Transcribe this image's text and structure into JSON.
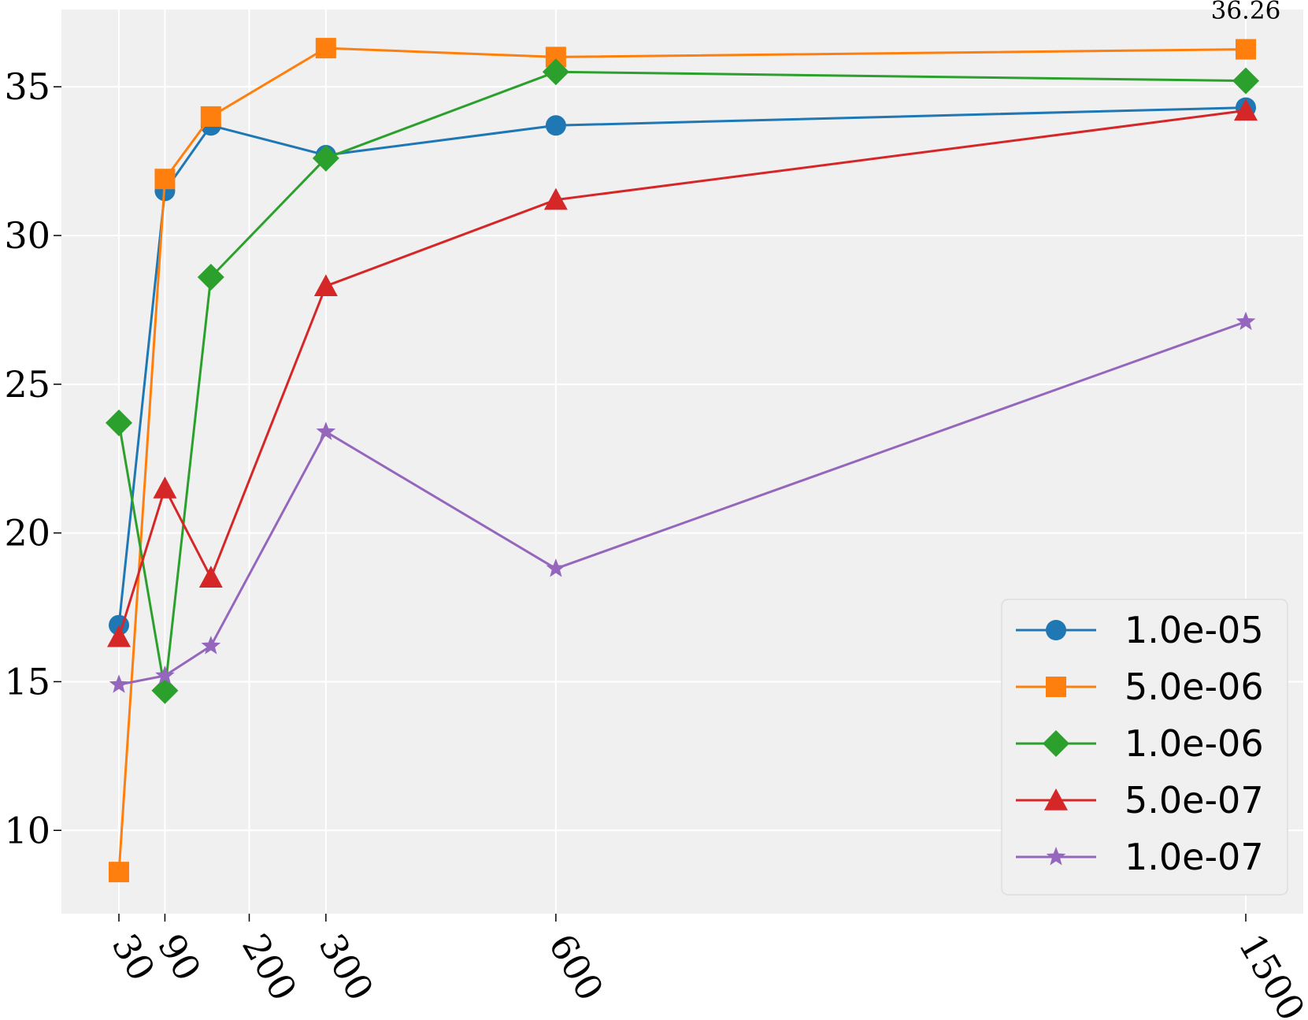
{
  "chart_data": {
    "type": "line",
    "x_positions": [
      30,
      90,
      150,
      300,
      600,
      1500
    ],
    "x_tick_values": [
      30,
      90,
      200,
      300,
      600,
      1500
    ],
    "x_tick_labels": [
      "30",
      "90",
      "200",
      "300",
      "600",
      "1500"
    ],
    "y_ticks": [
      10,
      15,
      20,
      25,
      30,
      35
    ],
    "y_tick_labels": [
      "10",
      "15",
      "20",
      "25",
      "30",
      "35"
    ],
    "xlim": [
      -45,
      1575
    ],
    "ylim": [
      7.2,
      37.6
    ],
    "grid": true,
    "legend_position": "lower-right",
    "annotation": {
      "text": "36.26",
      "x": 1500,
      "y": 36.26
    },
    "series": [
      {
        "name": "1.0e-05",
        "color": "#1f77b4",
        "marker": "circle",
        "values": [
          16.9,
          31.5,
          33.7,
          32.7,
          33.7,
          34.3
        ]
      },
      {
        "name": "5.0e-06",
        "color": "#ff7f0e",
        "marker": "square",
        "values": [
          8.6,
          31.9,
          34.0,
          36.3,
          36.0,
          36.26
        ]
      },
      {
        "name": "1.0e-06",
        "color": "#2ca02c",
        "marker": "diamond",
        "values": [
          23.7,
          14.7,
          28.6,
          32.6,
          35.5,
          35.2
        ]
      },
      {
        "name": "5.0e-07",
        "color": "#d62728",
        "marker": "triangle",
        "values": [
          16.5,
          21.5,
          18.5,
          28.3,
          31.2,
          34.2
        ]
      },
      {
        "name": "1.0e-07",
        "color": "#9467bd",
        "marker": "star",
        "values": [
          14.9,
          15.2,
          16.2,
          23.4,
          18.8,
          27.1
        ]
      }
    ]
  }
}
